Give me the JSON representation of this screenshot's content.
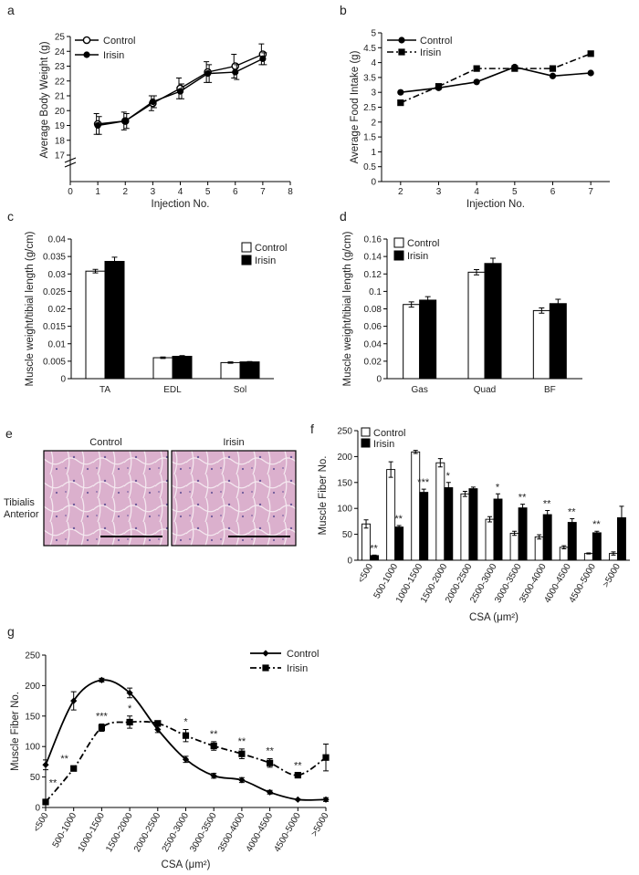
{
  "colors": {
    "control": "#ffffff",
    "irisin": "#000000",
    "line": "#000000",
    "tissue": "#d9a7c8"
  },
  "chart_data": [
    {
      "id": "a",
      "letter": "a",
      "type": "line",
      "ylabel": "Average Body Weight (g)",
      "xlabel": "Injection No.",
      "xlim": [
        0,
        8
      ],
      "xticks": [
        "0",
        "1",
        "2",
        "3",
        "4",
        "5",
        "6",
        "7",
        "8"
      ],
      "ylim": [
        17,
        25
      ],
      "yticks": [
        "17",
        "18",
        "19",
        "20",
        "21",
        "22",
        "23",
        "24",
        "25"
      ],
      "axis_break": true,
      "x": [
        1,
        2,
        3,
        4,
        5,
        6,
        7
      ],
      "series": [
        {
          "name": "Control",
          "marker": "open-circle",
          "dash": "solid",
          "values": [
            19.1,
            19.3,
            20.5,
            21.5,
            22.6,
            23.0,
            23.8
          ],
          "errors": [
            0.7,
            0.6,
            0.5,
            0.7,
            0.7,
            0.8,
            0.7
          ]
        },
        {
          "name": "Irisin",
          "marker": "filled-circle",
          "dash": "solid",
          "values": [
            19.0,
            19.3,
            20.6,
            21.3,
            22.5,
            22.6,
            23.5
          ],
          "errors": [
            0.6,
            0.5,
            0.4,
            0.5,
            0.6,
            0.5,
            0.4
          ]
        }
      ]
    },
    {
      "id": "b",
      "letter": "b",
      "type": "line",
      "ylabel": "Average Food Intake (g)",
      "xlabel": "Injection No.",
      "xlim": [
        1.5,
        7.5
      ],
      "xticks": [
        "2",
        "3",
        "4",
        "5",
        "6",
        "7"
      ],
      "ylim": [
        0,
        5
      ],
      "yticks": [
        "0",
        "0.5",
        "1",
        "1.5",
        "2",
        "2.5",
        "3",
        "3.5",
        "4",
        "4.5",
        "5"
      ],
      "x": [
        2,
        3,
        4,
        5,
        6,
        7
      ],
      "series": [
        {
          "name": "Control",
          "marker": "filled-circle",
          "dash": "solid",
          "values": [
            3.0,
            3.15,
            3.35,
            3.85,
            3.55,
            3.65
          ]
        },
        {
          "name": "Irisin",
          "marker": "filled-square",
          "dash": "dashdot",
          "values": [
            2.65,
            3.2,
            3.8,
            3.8,
            3.8,
            4.3
          ]
        }
      ]
    },
    {
      "id": "c",
      "letter": "c",
      "type": "bar",
      "ylabel": "Muscle weight/tibial length (g/cm)",
      "categories": [
        "TA",
        "EDL",
        "Sol"
      ],
      "ylim": [
        0,
        0.04
      ],
      "yticks": [
        "0",
        "0.005",
        "0.01",
        "0.015",
        "0.02",
        "0.025",
        "0.03",
        "0.035",
        "0.04"
      ],
      "series": [
        {
          "name": "Control",
          "values": [
            0.0308,
            0.006,
            0.0046
          ],
          "errors": [
            0.0005,
            0.0002,
            0.0002
          ]
        },
        {
          "name": "Irisin",
          "values": [
            0.0336,
            0.0064,
            0.0048
          ],
          "errors": [
            0.0012,
            0.0002,
            0.0001
          ]
        }
      ]
    },
    {
      "id": "d",
      "letter": "d",
      "type": "bar",
      "ylabel": "Muscle weight/tibial length (g/cm)",
      "categories": [
        "Gas",
        "Quad",
        "BF"
      ],
      "ylim": [
        0,
        0.16
      ],
      "yticks": [
        "0",
        "0.02",
        "0.04",
        "0.06",
        "0.08",
        "0.1",
        "0.12",
        "0.14",
        "0.16"
      ],
      "series": [
        {
          "name": "Control",
          "values": [
            0.085,
            0.122,
            0.078
          ],
          "errors": [
            0.003,
            0.003,
            0.003
          ]
        },
        {
          "name": "Irisin",
          "values": [
            0.09,
            0.132,
            0.086
          ],
          "errors": [
            0.004,
            0.006,
            0.005
          ]
        }
      ]
    },
    {
      "id": "f",
      "letter": "f",
      "type": "bar",
      "ylabel": "Muscle Fiber No.",
      "xlabel": "CSA (μm²)",
      "categories": [
        "<500",
        "500-1000",
        "1000-1500",
        "1500-2000",
        "2000-2500",
        "2500-3000",
        "3000-3500",
        "3500-4000",
        "4000-4500",
        "4500-5000",
        ">5000"
      ],
      "ylim": [
        0,
        250
      ],
      "yticks": [
        "0",
        "50",
        "100",
        "150",
        "200",
        "250"
      ],
      "series": [
        {
          "name": "Control",
          "values": [
            70,
            175,
            209,
            188,
            128,
            79,
            52,
            45,
            25,
            13,
            13
          ],
          "errors": [
            8,
            15,
            3,
            8,
            5,
            5,
            4,
            4,
            3,
            1,
            3
          ]
        },
        {
          "name": "Irisin",
          "values": [
            9,
            64,
            131,
            140,
            138,
            118,
            101,
            88,
            73,
            53,
            82
          ],
          "errors": [
            1,
            3,
            6,
            10,
            3,
            10,
            7,
            8,
            7,
            3,
            22
          ]
        }
      ],
      "annotations": [
        "**",
        "**",
        "***",
        "*",
        "",
        "*",
        "**",
        "**",
        "**",
        "**",
        ""
      ]
    },
    {
      "id": "g",
      "letter": "g",
      "type": "line",
      "ylabel": "Muscle Fiber No.",
      "xlabel": "CSA (μm²)",
      "categories": [
        "<500",
        "500-1000",
        "1000-1500",
        "1500-2000",
        "2000-2500",
        "2500-3000",
        "3000-3500",
        "3500-4000",
        "4000-4500",
        "4500-5000",
        ">5000"
      ],
      "ylim": [
        0,
        250
      ],
      "yticks": [
        "0",
        "50",
        "100",
        "150",
        "200",
        "250"
      ],
      "series": [
        {
          "name": "Control",
          "marker": "filled-diamond",
          "dash": "solid",
          "values": [
            70,
            175,
            209,
            188,
            128,
            79,
            52,
            45,
            25,
            13,
            13
          ],
          "errors": [
            8,
            15,
            3,
            8,
            5,
            5,
            4,
            4,
            3,
            1,
            3
          ]
        },
        {
          "name": "Irisin",
          "marker": "filled-square",
          "dash": "dashdot",
          "values": [
            9,
            64,
            131,
            140,
            138,
            118,
            101,
            88,
            73,
            53,
            82
          ],
          "errors": [
            1,
            3,
            6,
            10,
            3,
            10,
            7,
            8,
            7,
            3,
            22
          ]
        }
      ],
      "annotations": [
        "**",
        "**",
        "***",
        "*",
        "",
        "*",
        "**",
        "**",
        "**",
        "**",
        ""
      ]
    }
  ],
  "micrograph": {
    "letter": "e",
    "row_label_1": "Tibialis",
    "row_label_2": "Anterior",
    "columns": [
      "Control",
      "Irisin"
    ]
  }
}
